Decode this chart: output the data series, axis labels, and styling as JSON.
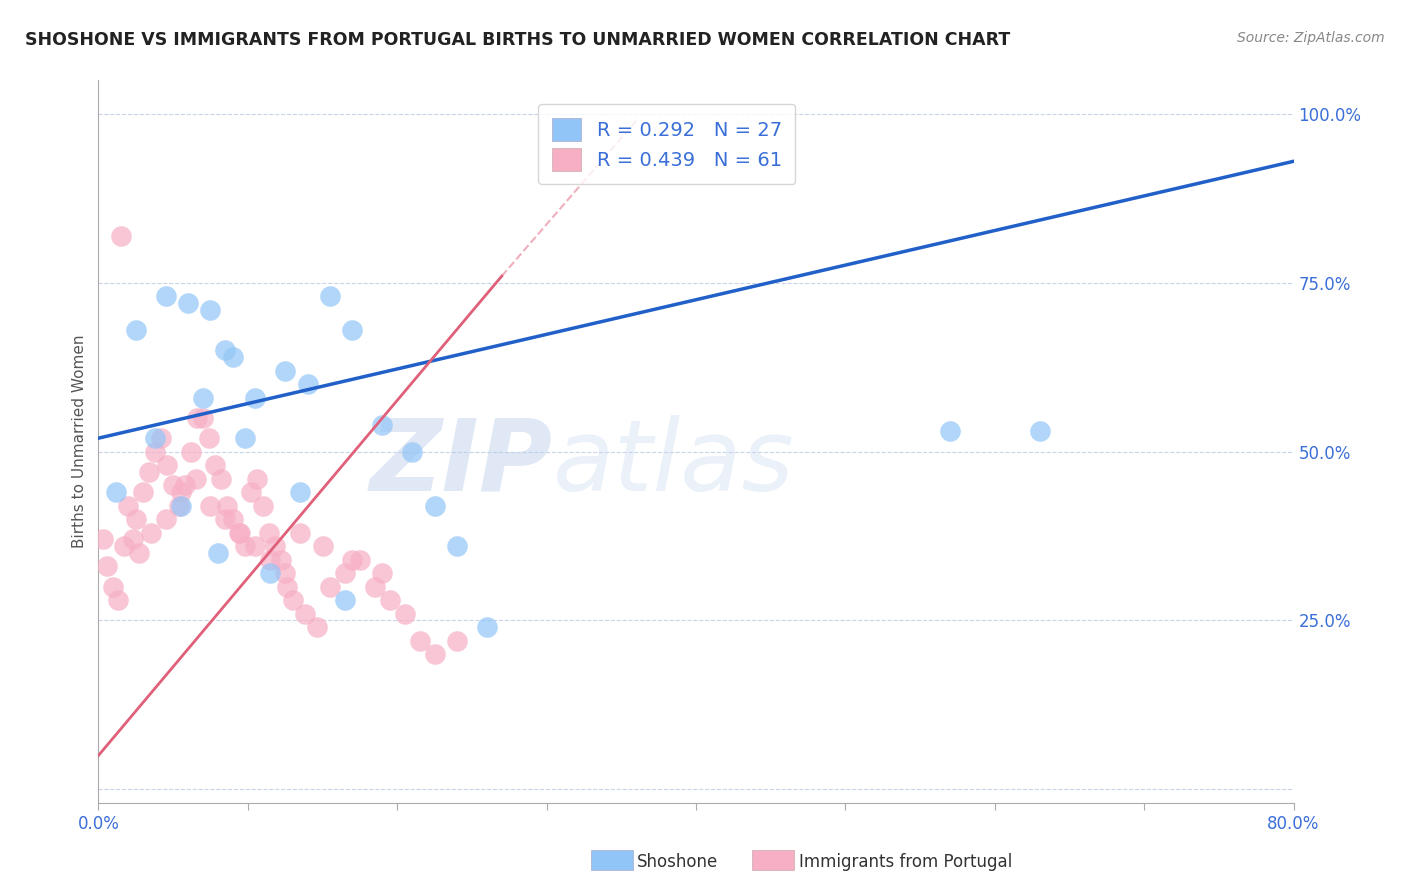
{
  "title": "SHOSHONE VS IMMIGRANTS FROM PORTUGAL BIRTHS TO UNMARRIED WOMEN CORRELATION CHART",
  "source": "Source: ZipAtlas.com",
  "ylabel": "Births to Unmarried Women",
  "xlim": [
    0.0,
    80.0
  ],
  "ylim": [
    -2.0,
    105.0
  ],
  "ytick_positions": [
    0,
    25,
    50,
    75,
    100
  ],
  "ytick_labels": [
    "",
    "25.0%",
    "50.0%",
    "75.0%",
    "100.0%"
  ],
  "watermark_zip": "ZIP",
  "watermark_atlas": "atlas",
  "legend_items": [
    {
      "color": "#92c5f7",
      "R": "0.292",
      "N": "27"
    },
    {
      "color": "#f7afc5",
      "R": "0.439",
      "N": "61"
    }
  ],
  "shoshone_color": "#92c5f7",
  "portugal_color": "#f7afc5",
  "blue_line_color": "#2060c8",
  "pink_line_color": "#e0607a",
  "shoshone_x": [
    1.2,
    2.5,
    4.5,
    6.0,
    7.5,
    8.5,
    9.0,
    10.5,
    12.5,
    14.0,
    15.5,
    17.0,
    19.0,
    21.0,
    22.5,
    24.0,
    57.0,
    63.0,
    3.8,
    7.0,
    9.8,
    13.5,
    16.5,
    5.5,
    8.0,
    11.5,
    26.0
  ],
  "shoshone_y": [
    44.0,
    68.0,
    73.0,
    72.0,
    71.0,
    65.0,
    64.0,
    58.0,
    62.0,
    60.0,
    73.0,
    68.0,
    54.0,
    50.0,
    42.0,
    36.0,
    53.0,
    53.0,
    52.0,
    58.0,
    52.0,
    44.0,
    28.0,
    42.0,
    35.0,
    32.0,
    24.0
  ],
  "portugal_x": [
    0.3,
    0.6,
    1.0,
    1.3,
    1.7,
    2.0,
    2.3,
    2.7,
    3.0,
    3.4,
    3.8,
    4.2,
    4.6,
    5.0,
    5.4,
    5.8,
    6.2,
    6.6,
    7.0,
    7.4,
    7.8,
    8.2,
    8.6,
    9.0,
    9.4,
    9.8,
    10.2,
    10.6,
    11.0,
    11.4,
    11.8,
    12.2,
    12.6,
    13.0,
    13.8,
    14.6,
    15.5,
    16.5,
    17.5,
    18.5,
    19.5,
    20.5,
    21.5,
    22.5,
    24.0,
    1.5,
    2.5,
    3.5,
    4.5,
    5.5,
    6.5,
    7.5,
    8.5,
    9.5,
    10.5,
    11.5,
    12.5,
    13.5,
    15.0,
    17.0,
    19.0
  ],
  "portugal_y": [
    37.0,
    33.0,
    30.0,
    28.0,
    36.0,
    42.0,
    37.0,
    35.0,
    44.0,
    47.0,
    50.0,
    52.0,
    48.0,
    45.0,
    42.0,
    45.0,
    50.0,
    55.0,
    55.0,
    52.0,
    48.0,
    46.0,
    42.0,
    40.0,
    38.0,
    36.0,
    44.0,
    46.0,
    42.0,
    38.0,
    36.0,
    34.0,
    30.0,
    28.0,
    26.0,
    24.0,
    30.0,
    32.0,
    34.0,
    30.0,
    28.0,
    26.0,
    22.0,
    20.0,
    22.0,
    82.0,
    40.0,
    38.0,
    40.0,
    44.0,
    46.0,
    42.0,
    40.0,
    38.0,
    36.0,
    34.0,
    32.0,
    38.0,
    36.0,
    34.0,
    32.0
  ],
  "blue_line_x0": 0.0,
  "blue_line_y0": 52.0,
  "blue_line_x1": 80.0,
  "blue_line_y1": 93.0,
  "pink_line_x0": 0.0,
  "pink_line_y0": 5.0,
  "pink_line_x1": 27.0,
  "pink_line_y1": 76.0,
  "pink_dash_x0": 27.0,
  "pink_dash_y0": 76.0,
  "pink_dash_x1": 36.0,
  "pink_dash_y1": 99.0,
  "grid_color": "#c8d4e8",
  "background_color": "#ffffff"
}
